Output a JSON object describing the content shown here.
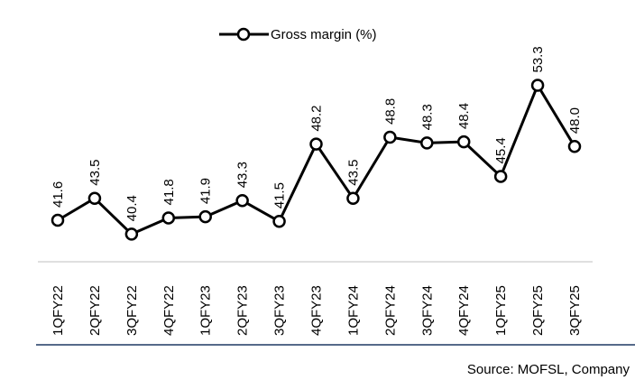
{
  "chart_data": {
    "type": "line",
    "categories": [
      "1QFY22",
      "2QFY22",
      "3QFY22",
      "4QFY22",
      "1QFY23",
      "2QFY23",
      "3QFY23",
      "4QFY23",
      "1QFY24",
      "2QFY24",
      "3QFY24",
      "4QFY24",
      "1QFY25",
      "2QFY25",
      "3QFY25"
    ],
    "series": [
      {
        "name": "Gross margin (%)",
        "color": "#000000",
        "values": [
          41.6,
          43.5,
          40.4,
          41.8,
          41.9,
          43.3,
          41.5,
          48.2,
          43.5,
          48.8,
          48.3,
          48.4,
          45.4,
          53.3,
          48.0
        ],
        "value_labels": [
          "41.6",
          "43.5",
          "40.4",
          "41.8",
          "41.9",
          "43.3",
          "41.5",
          "48.2",
          "43.5",
          "48.8",
          "48.3",
          "48.4",
          "45.4",
          "53.3",
          "48.0"
        ]
      }
    ],
    "ylim": [
      38,
      56
    ],
    "source": "Source: MOFSL, Company"
  }
}
